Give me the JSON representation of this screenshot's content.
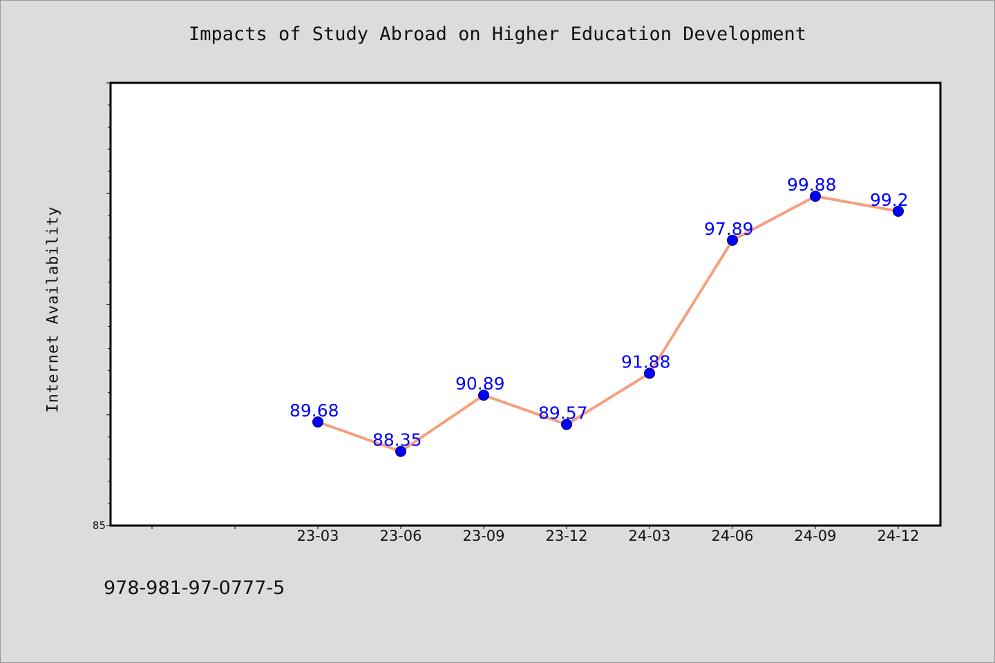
{
  "chart_data": {
    "type": "line",
    "title": "Impacts of Study Abroad on Higher Education Development",
    "xlabel": "",
    "ylabel": "Internet Availability",
    "categories": [
      "23-03",
      "23-06",
      "23-09",
      "23-12",
      "24-03",
      "24-06",
      "24-09",
      "24-12"
    ],
    "series": [
      {
        "values": [
          89.68,
          88.35,
          90.89,
          89.57,
          91.88,
          97.89,
          99.88,
          99.2
        ],
        "data_labels": [
          "89.68",
          "88.35",
          "90.89",
          "89.57",
          "91.88",
          "97.89",
          "99.88",
          "99.2"
        ],
        "line_color": "#f4a07e",
        "marker_color": "#0000ff"
      }
    ],
    "ylim": [
      85,
      105
    ],
    "y_tick_labels": [
      "85"
    ],
    "grid": false,
    "legend": "none"
  },
  "footer": {
    "isbn": "978-981-97-0777-5"
  }
}
